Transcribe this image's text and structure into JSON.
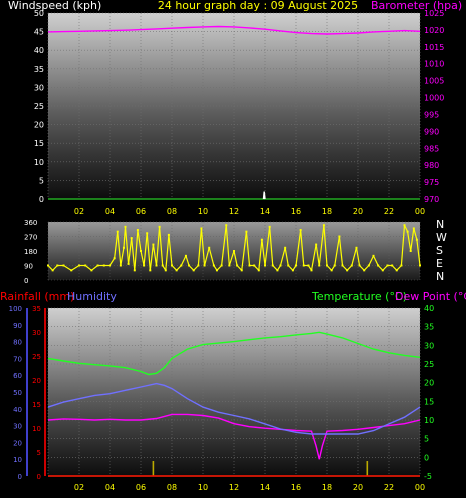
{
  "header": {
    "left_label": "Windspeed (kph)",
    "center_label": "24 hour graph day : 09 August 2025",
    "right_label": "Barometer (hpa)"
  },
  "colors": {
    "wind": "#ffffff",
    "barometer": "#ff00ff",
    "direction": "#ffff00",
    "rain": "#ff0000",
    "humidity": "#7070ff",
    "temperature": "#22ff22",
    "dewpoint": "#ff00ff",
    "tick_text": "#ffff00",
    "grid": "#707070"
  },
  "chart_data": [
    {
      "type": "line",
      "name": "wind-barometer",
      "x_ticks": [
        "02",
        "04",
        "06",
        "08",
        "10",
        "12",
        "14",
        "16",
        "18",
        "20",
        "22",
        "00"
      ],
      "left_axis": {
        "label": "Windspeed (kph)",
        "ylim": [
          0,
          50
        ],
        "ticks": [
          "0",
          "5",
          "10",
          "15",
          "20",
          "25",
          "30",
          "35",
          "40",
          "45",
          "50"
        ]
      },
      "right_axis": {
        "label": "Barometer (hpa)",
        "ylim": [
          970,
          1025
        ],
        "ticks": [
          "970",
          "975",
          "980",
          "985",
          "990",
          "995",
          "1000",
          "1005",
          "1010",
          "1015",
          "1020",
          "1025"
        ]
      },
      "series": [
        {
          "name": "Barometer (hpa)",
          "axis": "right",
          "x": [
            0,
            1,
            2,
            3,
            4,
            5,
            6,
            7,
            8,
            9,
            10,
            11,
            12,
            13,
            14,
            15,
            16,
            17,
            18,
            19,
            20,
            21,
            22,
            23,
            24
          ],
          "values": [
            1019.4,
            1019.5,
            1019.6,
            1019.7,
            1019.8,
            1019.9,
            1020.1,
            1020.3,
            1020.5,
            1020.7,
            1020.9,
            1021.0,
            1020.9,
            1020.6,
            1020.2,
            1019.7,
            1019.2,
            1018.9,
            1018.8,
            1018.9,
            1019.1,
            1019.4,
            1019.6,
            1019.8,
            1019.6
          ]
        },
        {
          "name": "Windspeed (kph)",
          "axis": "left",
          "x": [
            13.9,
            13.95,
            14.0
          ],
          "values": [
            0,
            2,
            0
          ]
        }
      ]
    },
    {
      "type": "scatter",
      "name": "wind-direction",
      "x_ticks": [
        "02",
        "04",
        "06",
        "08",
        "10",
        "12",
        "14",
        "16",
        "18",
        "20",
        "22",
        "00"
      ],
      "y_ticks": [
        "360",
        "270",
        "180",
        "90",
        "0"
      ],
      "compass_labels": [
        "N",
        "W",
        "S",
        "E",
        "N"
      ],
      "ylim": [
        0,
        360
      ],
      "points": [
        [
          0,
          90
        ],
        [
          0.3,
          60
        ],
        [
          0.6,
          90
        ],
        [
          1,
          90
        ],
        [
          1.5,
          60
        ],
        [
          2,
          90
        ],
        [
          2.4,
          90
        ],
        [
          2.8,
          60
        ],
        [
          3.2,
          90
        ],
        [
          3.6,
          90
        ],
        [
          4,
          90
        ],
        [
          4.3,
          135
        ],
        [
          4.5,
          300
        ],
        [
          4.7,
          90
        ],
        [
          4.9,
          200
        ],
        [
          5.0,
          330
        ],
        [
          5.2,
          100
        ],
        [
          5.4,
          260
        ],
        [
          5.6,
          60
        ],
        [
          5.8,
          310
        ],
        [
          6.0,
          180
        ],
        [
          6.2,
          90
        ],
        [
          6.4,
          290
        ],
        [
          6.6,
          60
        ],
        [
          6.8,
          220
        ],
        [
          7.0,
          90
        ],
        [
          7.2,
          330
        ],
        [
          7.4,
          90
        ],
        [
          7.6,
          60
        ],
        [
          7.8,
          280
        ],
        [
          8.0,
          90
        ],
        [
          8.3,
          60
        ],
        [
          8.6,
          90
        ],
        [
          8.9,
          150
        ],
        [
          9.1,
          90
        ],
        [
          9.4,
          60
        ],
        [
          9.7,
          90
        ],
        [
          9.9,
          320
        ],
        [
          10.1,
          90
        ],
        [
          10.4,
          200
        ],
        [
          10.7,
          90
        ],
        [
          10.9,
          60
        ],
        [
          11.2,
          90
        ],
        [
          11.5,
          340
        ],
        [
          11.7,
          90
        ],
        [
          12.0,
          180
        ],
        [
          12.2,
          90
        ],
        [
          12.5,
          60
        ],
        [
          12.8,
          300
        ],
        [
          13.0,
          90
        ],
        [
          13.3,
          90
        ],
        [
          13.6,
          60
        ],
        [
          13.8,
          250
        ],
        [
          14.0,
          90
        ],
        [
          14.3,
          330
        ],
        [
          14.5,
          90
        ],
        [
          14.8,
          60
        ],
        [
          15.0,
          90
        ],
        [
          15.3,
          200
        ],
        [
          15.5,
          90
        ],
        [
          15.8,
          60
        ],
        [
          16.0,
          90
        ],
        [
          16.3,
          310
        ],
        [
          16.5,
          90
        ],
        [
          16.8,
          90
        ],
        [
          17.0,
          60
        ],
        [
          17.3,
          220
        ],
        [
          17.5,
          90
        ],
        [
          17.8,
          340
        ],
        [
          18.0,
          90
        ],
        [
          18.3,
          60
        ],
        [
          18.5,
          90
        ],
        [
          18.8,
          270
        ],
        [
          19.0,
          90
        ],
        [
          19.3,
          60
        ],
        [
          19.6,
          90
        ],
        [
          19.9,
          200
        ],
        [
          20.1,
          90
        ],
        [
          20.4,
          60
        ],
        [
          20.7,
          90
        ],
        [
          21.0,
          150
        ],
        [
          21.3,
          90
        ],
        [
          21.6,
          60
        ],
        [
          21.9,
          90
        ],
        [
          22.2,
          90
        ],
        [
          22.5,
          60
        ],
        [
          22.8,
          90
        ],
        [
          23.0,
          340
        ],
        [
          23.2,
          300
        ],
        [
          23.4,
          180
        ],
        [
          23.6,
          320
        ],
        [
          23.8,
          250
        ],
        [
          24,
          90
        ]
      ]
    },
    {
      "type": "line",
      "name": "rain-humidity-temperature",
      "x_ticks": [
        "02",
        "04",
        "06",
        "08",
        "10",
        "12",
        "14",
        "16",
        "18",
        "20",
        "22",
        "00"
      ],
      "left_outer_axis": {
        "label": "Humidity",
        "ylim": [
          0,
          100
        ],
        "ticks": [
          "0",
          "10",
          "20",
          "30",
          "40",
          "50",
          "60",
          "70",
          "80",
          "90",
          "100"
        ]
      },
      "left_inner_axis": {
        "label": "Rainfall (mm)",
        "ylim": [
          0,
          35
        ],
        "ticks": [
          "0",
          "5",
          "10",
          "15",
          "20",
          "25",
          "30",
          "35"
        ]
      },
      "right_axis": {
        "label": "Temperature (°C)",
        "ylim": [
          -5,
          40
        ],
        "ticks": [
          "-5",
          "0",
          "5",
          "10",
          "15",
          "20",
          "25",
          "30",
          "35",
          "40"
        ]
      },
      "dewpoint_label": "Dew Point (°C)",
      "series": [
        {
          "name": "Temperature (°C)",
          "axis": "right",
          "x": [
            0,
            1,
            2,
            3,
            4,
            5,
            6,
            6.5,
            7,
            7.5,
            8,
            9,
            10,
            11,
            12,
            13,
            14,
            15,
            16,
            17,
            17.5,
            18,
            19,
            20,
            21,
            22,
            23,
            24
          ],
          "values": [
            26.5,
            25.8,
            25.2,
            24.8,
            24.5,
            24.0,
            23.0,
            22.2,
            22.5,
            24.0,
            26.5,
            29.0,
            30.2,
            30.6,
            31.0,
            31.5,
            32.0,
            32.3,
            32.8,
            33.2,
            33.5,
            33.0,
            32.0,
            30.5,
            29.0,
            28.0,
            27.3,
            26.8
          ]
        },
        {
          "name": "Dew Point (°C)",
          "axis": "right",
          "x": [
            0,
            1,
            2,
            3,
            4,
            5,
            6,
            7,
            8,
            9,
            10,
            11,
            12,
            13,
            14,
            15,
            16,
            17,
            17.3,
            17.5,
            17.7,
            18,
            19,
            20,
            21,
            22,
            23,
            24
          ],
          "values": [
            10.0,
            10.3,
            10.2,
            10.0,
            10.2,
            10.0,
            10.0,
            10.4,
            11.5,
            11.5,
            11.2,
            10.5,
            9.0,
            8.2,
            7.8,
            7.5,
            7.2,
            7.0,
            3.0,
            -0.5,
            3.0,
            7.0,
            7.2,
            7.5,
            8.0,
            8.5,
            9.0,
            10.0
          ]
        },
        {
          "name": "Humidity",
          "axis": "left_outer",
          "x": [
            0,
            1,
            2,
            3,
            4,
            5,
            6,
            7,
            7.5,
            8,
            9,
            10,
            11,
            12,
            13,
            14,
            15,
            16,
            17,
            18,
            19,
            20,
            21,
            22,
            23,
            24
          ],
          "values": [
            41,
            44,
            46,
            48,
            49,
            51,
            53,
            55,
            54,
            52,
            46,
            41,
            38,
            36,
            34,
            31,
            28,
            26,
            25,
            25,
            25,
            25,
            27,
            31,
            35,
            41
          ]
        },
        {
          "name": "Rainfall (mm)",
          "axis": "left_inner",
          "x": [
            0,
            24
          ],
          "values": [
            0,
            0
          ]
        }
      ],
      "markers_x": [
        6.8,
        20.6
      ]
    }
  ]
}
